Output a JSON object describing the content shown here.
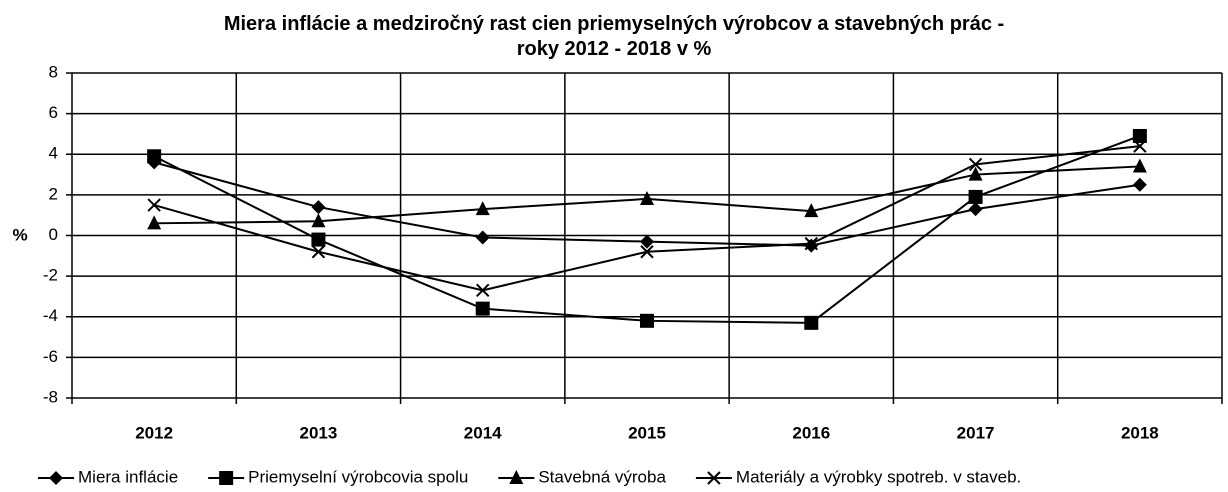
{
  "chart_data": {
    "type": "line",
    "title": "Miera inflácie a medziročný rast cien priemyselných výrobcov a stavebných prác - roky 2012 - 2018 v %",
    "y_label": "%",
    "categories": [
      "2012",
      "2013",
      "2014",
      "2015",
      "2016",
      "2017",
      "2018"
    ],
    "series": [
      {
        "name": "Miera inflácie",
        "color": "#000000",
        "marker": "diamond",
        "values": [
          3.6,
          1.4,
          -0.1,
          -0.3,
          -0.5,
          1.3,
          2.5
        ]
      },
      {
        "name": "Priemyselní výrobcovia spolu",
        "color": "#000000",
        "marker": "square",
        "values": [
          3.9,
          -0.2,
          -3.6,
          -4.2,
          -4.3,
          1.9,
          4.9
        ]
      },
      {
        "name": "Stavebná výroba",
        "color": "#000000",
        "marker": "triangle",
        "values": [
          0.6,
          0.7,
          1.3,
          1.8,
          1.2,
          3.0,
          3.4
        ]
      },
      {
        "name": "Materiály a výrobky spotreb. v staveb.",
        "color": "#000000",
        "marker": "x",
        "values": [
          1.5,
          -0.8,
          -2.7,
          -0.8,
          -0.4,
          3.5,
          4.4
        ]
      }
    ],
    "ylim": [
      -8,
      8
    ],
    "yticks": [
      -8,
      -6,
      -4,
      -2,
      0,
      2,
      4,
      6,
      8
    ],
    "grid": true,
    "legend": "bottom"
  }
}
